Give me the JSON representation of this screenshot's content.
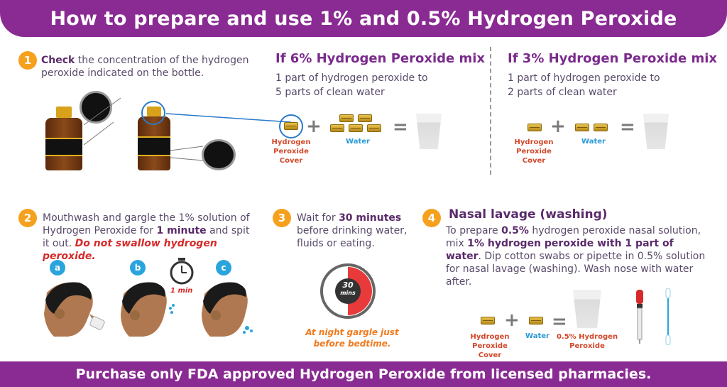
{
  "header": {
    "title": "How to prepare and use 1% and 0.5% Hydrogen Peroxide"
  },
  "footer": {
    "text": "Purchase only FDA approved Hydrogen Peroxide from licensed pharmacies."
  },
  "step1": {
    "number": "1",
    "bold": "Check",
    "text": " the concentration of the hydrogen peroxide indicated on the bottle."
  },
  "mix6": {
    "title": "If 6% Hydrogen Peroxide mix",
    "line1": "1 part of hydrogen peroxide to",
    "line2": "5 parts of clean water",
    "label_cover_1": "Hydrogen",
    "label_cover_2": "Peroxide",
    "label_cover_3": "Cover",
    "label_water": "Water",
    "plus": "+",
    "equals": "="
  },
  "mix3": {
    "title": "If 3% Hydrogen Peroxide mix",
    "line1": "1 part of hydrogen peroxide to",
    "line2": "2 parts of clean water",
    "label_cover_1": "Hydrogen",
    "label_cover_2": "Peroxide",
    "label_cover_3": "Cover",
    "label_water": "Water",
    "plus": "+",
    "equals": "="
  },
  "step2": {
    "number": "2",
    "text1": "Mouthwash and gargle the 1% solution of Hydrogen Peroxide for ",
    "bold": "1 minute",
    "text2": " and spit it out. ",
    "warning": "Do not swallow hydrogen peroxide.",
    "a": "a",
    "b": "b",
    "c": "c",
    "timer": "1 min"
  },
  "step3": {
    "number": "3",
    "text1": "Wait for ",
    "bold": "30 minutes",
    "text2": " before drinking water, fluids or eating.",
    "clock_num": "30",
    "clock_unit": "mins",
    "note1": "At night gargle just",
    "note2": "before bedtime."
  },
  "step4": {
    "number": "4",
    "title": "Nasal lavage (washing)",
    "t1": "To prepare ",
    "b1": "0.5%",
    "t2": " hydrogen peroxide nasal solution, mix ",
    "b2": "1% hydrogen peroxide with 1 part of water",
    "t3": ". Dip cotton swabs or pipette in 0.5% solution for nasal lavage (washing). Wash nose with water after.",
    "label_cover_1": "Hydrogen",
    "label_cover_2": "Peroxide",
    "label_cover_3": "Cover",
    "label_water": "Water",
    "label_result_1": "0.5% Hydrogen",
    "label_result_2": "Peroxide",
    "plus": "+",
    "equals": "="
  },
  "colors": {
    "brand_purple": "#8a2a93",
    "step_orange": "#f5a11e",
    "label_red": "#d2482a",
    "label_blue": "#2a9ad8"
  }
}
